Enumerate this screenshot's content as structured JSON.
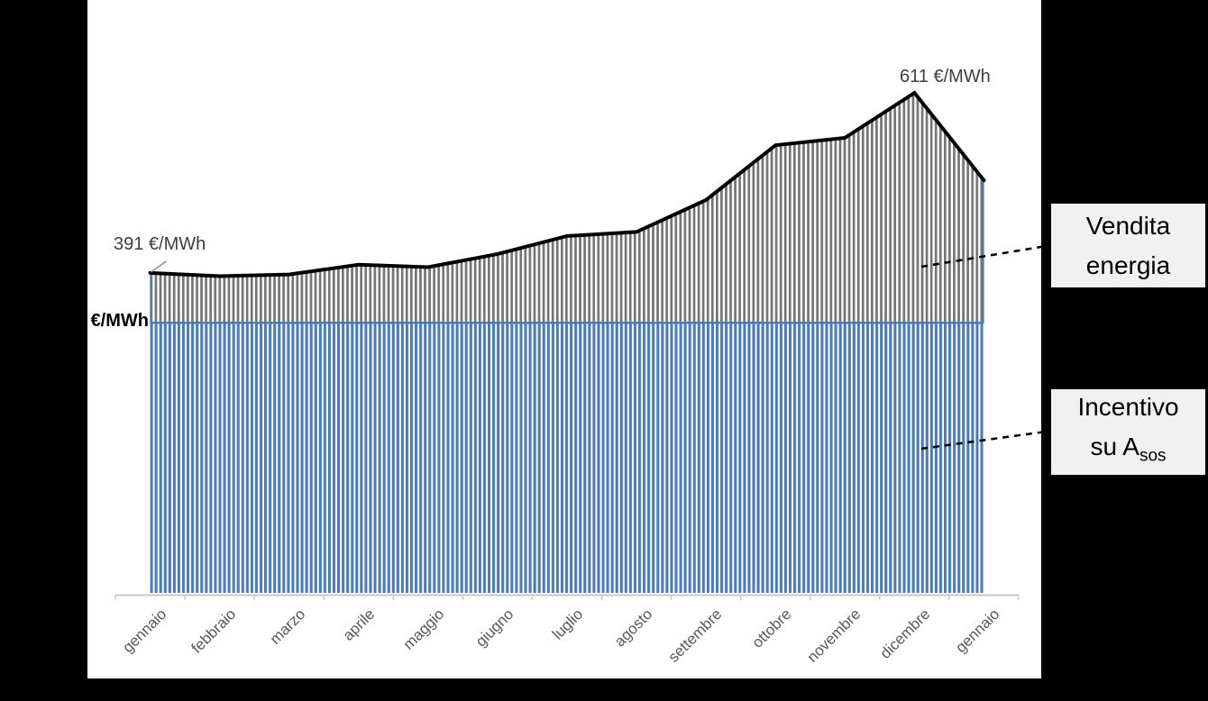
{
  "chart_data": {
    "type": "area",
    "title": "",
    "categories": [
      "gennaio",
      "febbraio",
      "marzo",
      "aprile",
      "maggio",
      "giugno",
      "luglio",
      "agosto",
      "settembre",
      "ottobre",
      "novembre",
      "dicembre",
      "gennaio"
    ],
    "series": [
      {
        "name": "Vendita energia",
        "style": "black line over gray vertical-hatch area",
        "values": [
          391,
          387,
          389,
          401,
          398,
          414,
          436,
          441,
          480,
          547,
          556,
          611,
          504
        ]
      },
      {
        "name": "Incentivo su Asos",
        "style": "constant blue vertical-stripe band",
        "level": 330
      }
    ],
    "ylabel": "€/MWh",
    "y_axis_numbers_shown": false,
    "grid": false,
    "legend_position": "right-outside-callouts",
    "annotations": [
      {
        "text": "391 €/MWh",
        "category_index": 0,
        "value": 391
      },
      {
        "text": "611 €/MWh",
        "category_index": 11,
        "value": 611
      }
    ]
  },
  "labels": {
    "axis_unit": "€/MWh",
    "annotation_start": "391 €/MWh",
    "annotation_peak": "611 €/MWh"
  },
  "legend": {
    "vendita": {
      "line1": "Vendita",
      "line2": "energia"
    },
    "incentivo": {
      "line1": "Incentivo",
      "line2_main": "su A",
      "line2_sub": "sos"
    }
  },
  "colors": {
    "background": "#000000",
    "panel": "#FFFFFF",
    "line": "#000000",
    "hatch_gray": "#757575",
    "bar_blue": "#4C7CB8",
    "axis": "#CACACA",
    "month_label": "#595959",
    "annotation": "#3E3E3E",
    "legend_bg": "#F1F1F1",
    "leader_gray": "#8F8F8F"
  }
}
